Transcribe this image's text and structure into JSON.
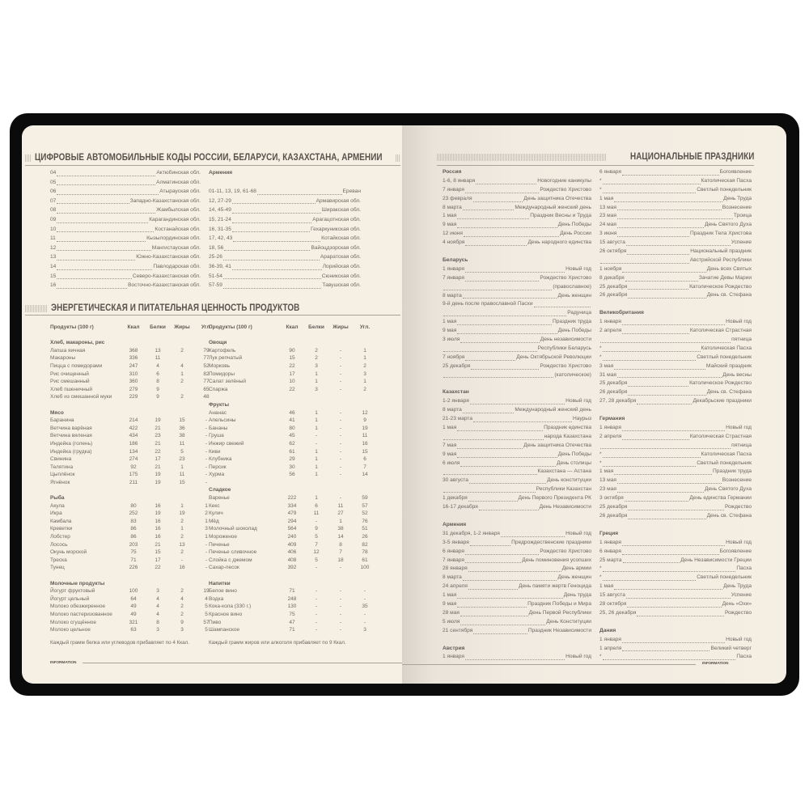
{
  "left_page": {
    "codes_title": "ЦИФРОВЫЕ АВТОМОБИЛЬНЫЕ КОДЫ РОССИИ, БЕЛАРУСИ, КАЗАХСТАНА, АРМЕНИИ",
    "codes_left": [
      [
        "04",
        "Актюбинская обл."
      ],
      [
        "05",
        "Алматинская обл."
      ],
      [
        "06",
        "Атырауская обл."
      ],
      [
        "07",
        "Западно-Казахстанская обл."
      ],
      [
        "08",
        "Жамбылская обл."
      ],
      [
        "09",
        "Карагандинская обл."
      ],
      [
        "10",
        "Костанайская обл."
      ],
      [
        "11",
        "Кызылординская обл."
      ],
      [
        "12",
        "Мангистауская обл."
      ],
      [
        "13",
        "Южно-Казахстанская обл."
      ],
      [
        "14",
        "Павлодарская обл."
      ],
      [
        "15",
        "Северо-Казахстанская обл."
      ],
      [
        "16",
        "Восточно-Казахстанская обл."
      ]
    ],
    "codes_right_heading": "Армения",
    "codes_right": [
      [
        "01-11, 13, 19, 61-68",
        "Ереван"
      ],
      [
        "12, 27-29",
        "Армавирская обл."
      ],
      [
        "14, 45-49",
        "Ширакская обл."
      ],
      [
        "15, 21-24",
        "Арагацотнская обл."
      ],
      [
        "16, 31-35",
        "Гехаркуникская обл."
      ],
      [
        "17, 42, 43",
        "Котайкская обл."
      ],
      [
        "18, 56",
        "Вайоцдзорская обл."
      ],
      [
        "25-26",
        "Араратская обл."
      ],
      [
        "36-39, 41",
        "Лорийская обл."
      ],
      [
        "51-54",
        "Сюникская обл."
      ],
      [
        "57-59",
        "Тавушская обл."
      ]
    ],
    "food_title": "ЭНЕРГЕТИЧЕСКАЯ И ПИТАТЕЛЬНАЯ ЦЕННОСТЬ ПРОДУКТОВ",
    "table_header": [
      "Продукты (100 г)",
      "Ккал",
      "Белки",
      "Жиры",
      "Угл."
    ],
    "table_left": [
      {
        "title": "Хлеб, макароны, рис",
        "rows": [
          [
            "Лапша яичная",
            "368",
            "13",
            "2",
            "79"
          ],
          [
            "Макароны",
            "336",
            "11",
            "",
            "77"
          ],
          [
            "Пицца с помидорами",
            "247",
            "4",
            "4",
            "52"
          ],
          [
            "Рис очищенный",
            "310",
            "6",
            "1",
            "82"
          ],
          [
            "Рис смешанный",
            "360",
            "8",
            "2",
            "77"
          ],
          [
            "Хлеб пшеничный",
            "279",
            "9",
            "",
            "65"
          ],
          [
            "Хлеб из смешанной муки",
            "229",
            "9",
            "2",
            "48"
          ]
        ]
      },
      {
        "title": "Мясо",
        "rows": [
          [
            "Баранина",
            "214",
            "19",
            "15",
            "-"
          ],
          [
            "Ветчина варёная",
            "422",
            "21",
            "36",
            "-"
          ],
          [
            "Ветчина вяленая",
            "434",
            "23",
            "38",
            "-"
          ],
          [
            "Индейка (голень)",
            "186",
            "21",
            "11",
            "-"
          ],
          [
            "Индейка (грудка)",
            "134",
            "22",
            "5",
            "-"
          ],
          [
            "Свинина",
            "274",
            "17",
            "23",
            "-"
          ],
          [
            "Телятина",
            "92",
            "21",
            "1",
            "-"
          ],
          [
            "Цыплёнок",
            "175",
            "19",
            "11",
            "-"
          ],
          [
            "Ягнёнок",
            "211",
            "19",
            "15",
            "-"
          ]
        ]
      },
      {
        "title": "Рыба",
        "rows": [
          [
            "Акула",
            "80",
            "16",
            "1",
            "1"
          ],
          [
            "Икра",
            "252",
            "19",
            "19",
            "2"
          ],
          [
            "Камбала",
            "83",
            "16",
            "2",
            "1"
          ],
          [
            "Креветки",
            "86",
            "16",
            "1",
            "3"
          ],
          [
            "Лобстер",
            "86",
            "16",
            "2",
            "1"
          ],
          [
            "Лосось",
            "203",
            "21",
            "13",
            "-"
          ],
          [
            "Окунь морской",
            "75",
            "15",
            "2",
            "-"
          ],
          [
            "Треска",
            "71",
            "17",
            "-",
            "-"
          ],
          [
            "Тунец",
            "226",
            "22",
            "16",
            "-"
          ]
        ]
      },
      {
        "title": "Молочные продукты",
        "rows": [
          [
            "Йогурт фруктовый",
            "100",
            "3",
            "2",
            "19"
          ],
          [
            "Йогурт цельный",
            "64",
            "4",
            "4",
            "4"
          ],
          [
            "Молоко обезжиренное",
            "49",
            "4",
            "2",
            "5"
          ],
          [
            "Молоко пастеризованное",
            "49",
            "4",
            "2",
            "5"
          ],
          [
            "Молоко сгущённое",
            "321",
            "8",
            "9",
            "57"
          ],
          [
            "Молоко цельное",
            "63",
            "3",
            "3",
            "5"
          ]
        ]
      }
    ],
    "table_right": [
      {
        "title": "Овощи",
        "rows": [
          [
            "Картофель",
            "90",
            "2",
            "-",
            "1"
          ],
          [
            "Лук репчатый",
            "15",
            "2",
            "-",
            "1"
          ],
          [
            "Морковь",
            "22",
            "3",
            "-",
            "2"
          ],
          [
            "Помидоры",
            "17",
            "1",
            "-",
            "3"
          ],
          [
            "Салат зелёный",
            "10",
            "1",
            "-",
            "1"
          ],
          [
            "Спаржа",
            "22",
            "3",
            "-",
            "2"
          ]
        ]
      },
      {
        "title": "Фрукты",
        "rows": [
          [
            "Ананас",
            "46",
            "1",
            "-",
            "12"
          ],
          [
            "Апельсины",
            "41",
            "1",
            "-",
            "9"
          ],
          [
            "Бананы",
            "80",
            "1",
            "-",
            "19"
          ],
          [
            "Груша",
            "45",
            "-",
            "-",
            "11"
          ],
          [
            "Инжир свежий",
            "62",
            "-",
            "-",
            "16"
          ],
          [
            "Киви",
            "61",
            "1",
            "-",
            "15"
          ],
          [
            "Клубника",
            "29",
            "1",
            "-",
            "6"
          ],
          [
            "Персик",
            "30",
            "1",
            "-",
            "7"
          ],
          [
            "Хурма",
            "56",
            "1",
            "-",
            "14"
          ]
        ]
      },
      {
        "title": "Сладкое",
        "rows": [
          [
            "Варенье",
            "222",
            "1",
            "-",
            "59"
          ],
          [
            "Кекс",
            "334",
            "6",
            "11",
            "57"
          ],
          [
            "Кулич",
            "479",
            "11",
            "27",
            "52"
          ],
          [
            "Мёд",
            "294",
            "-",
            "1",
            "76"
          ],
          [
            "Молочный шоколад",
            "564",
            "9",
            "38",
            "51"
          ],
          [
            "Мороженое",
            "240",
            "5",
            "14",
            "26"
          ],
          [
            "Печенье",
            "409",
            "7",
            "8",
            "82"
          ],
          [
            "Печенье сливочное",
            "406",
            "12",
            "7",
            "78"
          ],
          [
            "Слойка с джемом",
            "408",
            "5",
            "18",
            "61"
          ],
          [
            "Сахар-песок",
            "392",
            "-",
            "-",
            "100"
          ]
        ]
      },
      {
        "title": "Напитки",
        "rows": [
          [
            "Белое вино",
            "71",
            "-",
            "-",
            "-"
          ],
          [
            "Водка",
            "248",
            "-",
            "-",
            "-"
          ],
          [
            "Кока-кола (330 г.)",
            "130",
            "-",
            "-",
            "35"
          ],
          [
            "Красное вино",
            "75",
            "-",
            "-",
            "-"
          ],
          [
            "Пиво",
            "47",
            "-",
            "-",
            "-"
          ],
          [
            "Шампанское",
            "71",
            "-",
            "-",
            "3"
          ]
        ]
      }
    ],
    "note_left": "Каждый грамм белка или углеводов прибавляет по 4 Ккал.",
    "note_right": "Каждый грамм жиров или алкоголя прибавляет по 9 Ккал.",
    "footer": "INFORMATION"
  },
  "right_page": {
    "title": "НАЦИОНАЛЬНЫЕ ПРАЗДНИКИ",
    "col1": [
      {
        "title": "Россия",
        "rows": [
          [
            "1-6, 8 января",
            "Новогодние каникулы"
          ],
          [
            "7 января",
            "Рождество Христово"
          ],
          [
            "23 февраля",
            "День защитника Отечества"
          ],
          [
            "8 марта",
            "Международный женский день"
          ],
          [
            "1 мая",
            "Праздник Весны и Труда"
          ],
          [
            "9 мая",
            "День Победы"
          ],
          [
            "12 июня",
            "День России"
          ],
          [
            "4 ноября",
            "День народного единства"
          ]
        ]
      },
      {
        "title": "Беларусь",
        "rows": [
          [
            "1 января",
            "Новый год"
          ],
          [
            "7 января",
            "Рождество Христово"
          ],
          [
            "",
            "(православное)"
          ],
          [
            "8 марта",
            "День женщин"
          ],
          [
            "9-й день после православной Пасхи",
            ""
          ],
          [
            "",
            "Радуница"
          ],
          [
            "1 мая",
            "Праздник труда"
          ],
          [
            "9 мая",
            "День Победы"
          ],
          [
            "3 июля",
            "День независимости"
          ],
          [
            "",
            "Республики Беларусь"
          ],
          [
            "7 ноября",
            "День Октябрьской Революции"
          ],
          [
            "25 декабря",
            "Рождество Христово"
          ],
          [
            "",
            "(католическое)"
          ]
        ]
      },
      {
        "title": "Казахстан",
        "rows": [
          [
            "1-2 января",
            "Новый год"
          ],
          [
            "8 марта",
            "Международный женский день"
          ],
          [
            "21-23 марта",
            "Наурыз"
          ],
          [
            "1 мая",
            "Праздник единства"
          ],
          [
            "",
            "народа Казахстана"
          ],
          [
            "7 мая",
            "День защитника Отечества"
          ],
          [
            "9 мая",
            "День Победы"
          ],
          [
            "6 июля",
            "День столицы"
          ],
          [
            "",
            "Казахстана — Астана"
          ],
          [
            "30 августа",
            "День конституции"
          ],
          [
            "",
            "Республики Казахстан"
          ],
          [
            "1 декабря",
            "День Первого Президента РК"
          ],
          [
            "16-17 декабря",
            "День Независимости"
          ]
        ]
      },
      {
        "title": "Армения",
        "rows": [
          [
            "31 декабря, 1-2 января",
            "Новый год"
          ],
          [
            "3-5 января",
            "Предрождественские праздники"
          ],
          [
            "6 января",
            "Рождество Христово"
          ],
          [
            "7 января",
            "День поминовения усопших"
          ],
          [
            "28 января",
            "День армии"
          ],
          [
            "8 марта",
            "День женщин"
          ],
          [
            "24 апреля",
            "День памяти жертв Геноцида"
          ],
          [
            "1 мая",
            "День труда"
          ],
          [
            "9 мая",
            "Праздник Победы и Мира"
          ],
          [
            "28 мая",
            "День Первой Республики"
          ],
          [
            "5 июля",
            "День Конституции"
          ],
          [
            "21 сентября",
            "Праздник Независимости"
          ]
        ]
      },
      {
        "title": "Австрия",
        "rows": [
          [
            "1 января",
            "Новый год"
          ]
        ]
      }
    ],
    "col2": [
      {
        "title": "",
        "rows": [
          [
            "6 января",
            "Богоявление"
          ],
          [
            "*",
            "Католическая Пасха"
          ],
          [
            "*",
            "Светлый понедельник"
          ],
          [
            "1 мая",
            "День Труда"
          ],
          [
            "13 мая",
            "Вознесение"
          ],
          [
            "23 мая",
            "Троица"
          ],
          [
            "24 мая",
            "День Святого Духа"
          ],
          [
            "3 июня",
            "Праздник Тела Христова"
          ],
          [
            "15 августа",
            "Успение"
          ],
          [
            "26 октября",
            "Национальный праздник"
          ],
          [
            "",
            "Австрийской Республики"
          ],
          [
            "1 ноября",
            "День всех Святых"
          ],
          [
            "8 декабря",
            "Зачатие Девы Марии"
          ],
          [
            "25 декабря",
            "Католическое Рождество"
          ],
          [
            "26 декабря",
            "День св. Стефана"
          ]
        ]
      },
      {
        "title": "Великобритания",
        "rows": [
          [
            "1 января",
            "Новый год"
          ],
          [
            "2 апреля",
            "Католическая Страстная"
          ],
          [
            "",
            "пятница"
          ],
          [
            "*",
            "Католическая Пасха"
          ],
          [
            "*",
            "Светлый понедельник"
          ],
          [
            "3 мая",
            "Майский праздник"
          ],
          [
            "31 мая",
            "День весны"
          ],
          [
            "25 декабря",
            "Католическое Рождество"
          ],
          [
            "26 декабря",
            "День св. Стефана"
          ],
          [
            "27, 28 декабря",
            "Декабрьские праздники"
          ]
        ]
      },
      {
        "title": "Германия",
        "rows": [
          [
            "1 января",
            "Новый год"
          ],
          [
            "2 апреля",
            "Католическая Страстная"
          ],
          [
            "",
            "пятница"
          ],
          [
            "*",
            "Католическая Пасха"
          ],
          [
            "*",
            "Светлый понедельник"
          ],
          [
            "1 мая",
            "Праздник труда"
          ],
          [
            "13 мая",
            "Вознесение"
          ],
          [
            "23 мая",
            "День Святого Духа"
          ],
          [
            "3 октября",
            "День единства Германии"
          ],
          [
            "25 декабря",
            "Рождество"
          ],
          [
            "26 декабря",
            "День св. Стефана"
          ]
        ]
      },
      {
        "title": "Греция",
        "rows": [
          [
            "1 января",
            "Новый год"
          ],
          [
            "6 января",
            "Богоявление"
          ],
          [
            "25 марта",
            "День Независимости Греции"
          ],
          [
            "*",
            "Пасха"
          ],
          [
            "*",
            "Светлый понедельник"
          ],
          [
            "1 мая",
            "День Труда"
          ],
          [
            "15 августа",
            "Успение"
          ],
          [
            "28 октября",
            "День «Охи»"
          ],
          [
            "25, 26 декабря",
            "Рождество"
          ]
        ]
      },
      {
        "title": "Дания",
        "rows": [
          [
            "1 января",
            "Новый год"
          ],
          [
            "1 апреля",
            "Великий четверг"
          ],
          [
            "*",
            "Пасха"
          ]
        ]
      }
    ],
    "footer": "INFORMATION"
  }
}
